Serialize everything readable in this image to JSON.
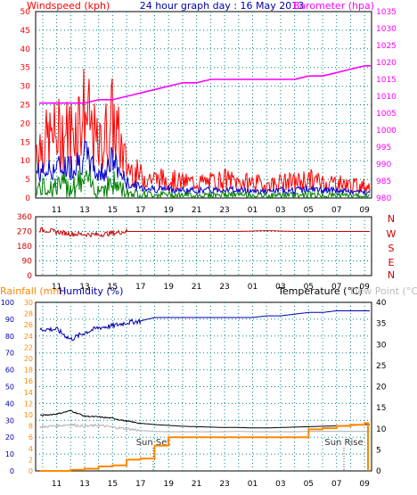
{
  "header": {
    "left_title": "Windspeed (kph)",
    "center_title": "24 hour graph day : 16 May 2013",
    "right_title": "Barometer (hpa)"
  },
  "x_axis": {
    "labels": [
      "11",
      "13",
      "15",
      "17",
      "19",
      "21",
      "23",
      "01",
      "03",
      "05",
      "07",
      "09"
    ]
  },
  "panel1": {
    "wind_ticks": [
      "0",
      "5",
      "10",
      "15",
      "20",
      "25",
      "30",
      "35",
      "40",
      "45",
      "50"
    ],
    "baro_ticks": [
      "980",
      "985",
      "990",
      "995",
      "1000",
      "1005",
      "1010",
      "1015",
      "1020",
      "1025",
      "1030",
      "1035"
    ]
  },
  "panel2": {
    "dir_ticks": [
      "0",
      "90",
      "180",
      "270",
      "360"
    ],
    "compass": [
      "N",
      "W",
      "S",
      "E",
      "N"
    ]
  },
  "panel3": {
    "rainfall_title": "Rainfall (mm)",
    "humidity_title": "Humidity (%)",
    "temperature_title": "Temperature (°C)",
    "dewpoint_title": "Dew Point (°C)",
    "humidity_ticks": [
      "0",
      "10",
      "20",
      "30",
      "40",
      "50",
      "60",
      "70",
      "80",
      "90",
      "100"
    ],
    "rain_ticks": [
      "0",
      "2",
      "4",
      "6",
      "8",
      "10",
      "12",
      "14",
      "16",
      "18",
      "20",
      "22",
      "24",
      "26",
      "28",
      "30"
    ],
    "temp_ticks": [
      "0",
      "5",
      "10",
      "15",
      "20",
      "25",
      "30",
      "35",
      "40"
    ],
    "sunset_label": "Sun Set",
    "sunrise_label": "Sun Rise"
  },
  "colors": {
    "wind_gust": "#ff0000",
    "wind_avg": "#0000cc",
    "wind_low": "#008000",
    "barometer": "#ff00ff",
    "direction": "#cc0000",
    "rainfall": "#ff8800",
    "humidity": "#0000aa",
    "temperature": "#000000",
    "dewpoint": "#bbbbbb",
    "rain_label": "#ff8800",
    "axis_blue": "#0000aa",
    "compass_red": "#cc0000",
    "grid": "#008080"
  },
  "chart_data": [
    {
      "type": "line",
      "title": "24 hour graph day : 16 May 2013",
      "x": [
        10,
        11,
        12,
        13,
        14,
        15,
        16,
        17,
        18,
        19,
        20,
        21,
        22,
        23,
        24,
        25,
        26,
        27,
        28,
        29,
        30,
        31,
        32,
        33
      ],
      "x_tick_labels": [
        "11",
        "13",
        "15",
        "17",
        "19",
        "21",
        "23",
        "01",
        "03",
        "05",
        "07",
        "09"
      ],
      "series": [
        {
          "name": "Windspeed (kph)",
          "axis": "left",
          "values": [
            17,
            20,
            21,
            28,
            15,
            25,
            10,
            7,
            6,
            6,
            5,
            5,
            5,
            6,
            5,
            5,
            4,
            5,
            5,
            6,
            5,
            5,
            4,
            4
          ]
        },
        {
          "name": "Barometer (hpa)",
          "axis": "right",
          "values": [
            1008,
            1008,
            1008,
            1008,
            1009,
            1009,
            1010,
            1011,
            1012,
            1013,
            1014,
            1014,
            1015,
            1015,
            1015,
            1015,
            1015,
            1015,
            1015,
            1016,
            1016,
            1017,
            1018,
            1019
          ]
        }
      ],
      "ylim_left": [
        0,
        50
      ],
      "ylim_right": [
        980,
        1035
      ]
    },
    {
      "type": "line",
      "x": [
        10,
        12,
        14,
        16,
        18,
        20,
        22,
        24,
        26,
        28,
        30,
        32,
        33
      ],
      "series": [
        {
          "name": "Wind direction",
          "values": [
            280,
            255,
            250,
            270,
            270,
            270,
            270,
            270,
            275,
            270,
            270,
            270,
            270
          ]
        }
      ],
      "ylim": [
        0,
        360
      ]
    },
    {
      "type": "line",
      "x": [
        10,
        11,
        12,
        13,
        14,
        15,
        16,
        17,
        18,
        19,
        20,
        21,
        22,
        23,
        24,
        25,
        26,
        27,
        28,
        29,
        30,
        31,
        32,
        33
      ],
      "series": [
        {
          "name": "Humidity (%)",
          "axis": "humidity",
          "values": [
            84,
            84,
            78,
            82,
            85,
            86,
            88,
            89,
            91,
            91,
            91,
            91,
            91,
            91,
            91,
            91,
            92,
            92,
            93,
            94,
            94,
            95,
            95,
            95
          ]
        },
        {
          "name": "Temperature (°C)",
          "axis": "temperature",
          "values": [
            13.2,
            13.5,
            14.3,
            13.0,
            12.8,
            12.5,
            11.8,
            11.3,
            11.0,
            10.8,
            10.6,
            10.5,
            10.4,
            10.3,
            10.3,
            10.2,
            10.2,
            10.3,
            10.4,
            10.5,
            10.6,
            10.7,
            10.8,
            11.0
          ]
        },
        {
          "name": "Dew Point (°C)",
          "axis": "temperature",
          "values": [
            10.5,
            10.7,
            11.0,
            10.6,
            10.8,
            10.4,
            10.0,
            9.6,
            9.4,
            9.3,
            9.3,
            9.3,
            9.3,
            9.3,
            9.4,
            9.3,
            9.3,
            9.3,
            9.3,
            9.4,
            9.4,
            9.4,
            9.4,
            9.4
          ]
        },
        {
          "name": "Rainfall (mm)",
          "axis": "rainfall",
          "values": [
            0.0,
            0.0,
            0.2,
            0.4,
            0.8,
            1.0,
            2.0,
            2.2,
            4.5,
            6.0,
            6.0,
            6.0,
            6.0,
            6.0,
            6.0,
            6.0,
            6.0,
            6.0,
            6.0,
            7.4,
            7.6,
            8.0,
            8.2,
            8.5
          ]
        }
      ],
      "ylim_humidity": [
        0,
        100
      ],
      "ylim_rainfall": [
        0,
        30
      ],
      "ylim_temperature": [
        0,
        40
      ]
    }
  ]
}
